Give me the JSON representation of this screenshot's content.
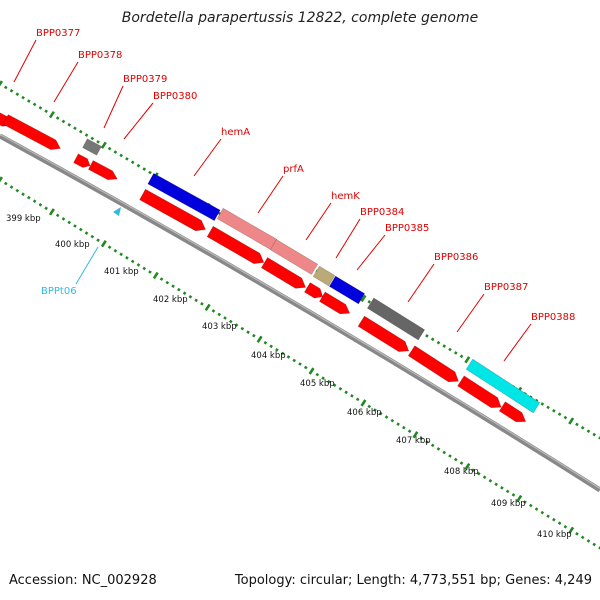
{
  "title": "Bordetella parapertussis 12822, complete genome",
  "footer": {
    "accession": "Accession: NC_002928",
    "summary": "Topology: circular; Length: 4,773,551 bp; Genes: 4,249"
  },
  "colors": {
    "cds": "#ff0000",
    "cds_border": "#b00000",
    "hemA": "#0000dd",
    "prfA": "#ee8888",
    "hemK": "#bbaa77",
    "BPP0384": "#0000dd",
    "BPP0386": "#666666",
    "BPP0378": "#777777",
    "BPP0388": "#00e5e5",
    "trna": "#33bbdd",
    "tick": "#228822",
    "backbone": "#888888"
  },
  "scale_labels": [
    "399 kbp",
    "400 kbp",
    "401 kbp",
    "402 kbp",
    "403 kbp",
    "404 kbp",
    "405 kbp",
    "406 kbp",
    "407 kbp",
    "408 kbp",
    "409 kbp",
    "410 kbp"
  ],
  "gene_labels": [
    "BPP0377",
    "BPP0378",
    "BPP0379",
    "BPP0380",
    "hemA",
    "prfA",
    "hemK",
    "BPP0384",
    "BPP0385",
    "BPP0386",
    "BPP0387",
    "BPP0388"
  ],
  "trna_labels": [
    "BPPt06"
  ]
}
